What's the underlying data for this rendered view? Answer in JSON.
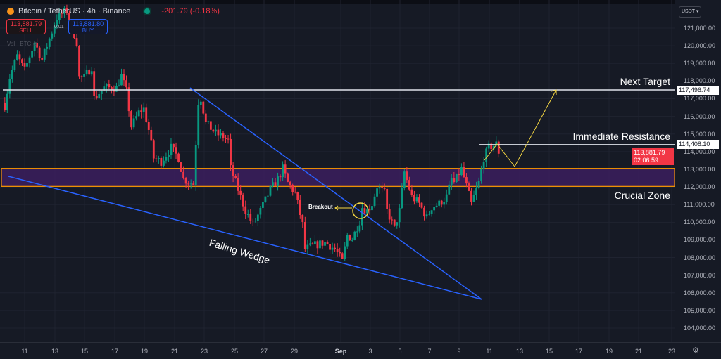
{
  "header": {
    "symbol": "Bitcoin / TetherUS · 4h · Binance",
    "change": "-201.79 (-0.18%)",
    "sell_price": "113,881.79",
    "sell_label": "SELL",
    "buy_price": "113,881.80",
    "buy_label": "BUY",
    "spread": "0.01",
    "volume_label": "Vol · BTC",
    "currency": "USDT"
  },
  "price_axis": {
    "labels": [
      "121,000.00",
      "120,000.00",
      "119,000.00",
      "118,000.00",
      "117,000.00",
      "116,000.00",
      "115,000.00",
      "114,000.00",
      "113,000.00",
      "112,000.00",
      "111,000.00",
      "110,000.00",
      "109,000.00",
      "108,000.00",
      "107,000.00",
      "106,000.00",
      "105,000.00",
      "104,000.00"
    ],
    "target_label": "117,496.74",
    "resistance_label": "114,408.10",
    "last_price": "113,881.79",
    "countdown": "02:06:59"
  },
  "time_axis": {
    "labels": [
      "11",
      "13",
      "15",
      "17",
      "19",
      "21",
      "23",
      "25",
      "27",
      "29",
      "Sep",
      "3",
      "5",
      "7",
      "9",
      "11",
      "13",
      "15",
      "17",
      "19",
      "21",
      "23"
    ]
  },
  "annotations": {
    "next_target": "Next Target",
    "immediate_resistance": "Immediate Resistance",
    "crucial_zone": "Crucial Zone",
    "falling_wedge": "Falling Wedge",
    "breakout": "Breakout"
  },
  "colors": {
    "up": "#089981",
    "down": "#f23645",
    "background": "#161a25",
    "zone_fill": "#3b1f5e",
    "zone_border": "#ff9800",
    "wedge": "#2962ff",
    "projection": "#f5d742"
  },
  "chart_data": {
    "type": "candlestick",
    "interval": "4h",
    "ylim": [
      103500,
      122000
    ],
    "grid": true,
    "levels": {
      "next_target": 117496.74,
      "immediate_resistance": 114408.1,
      "zone": [
        112030,
        113050
      ]
    },
    "close_path": [
      [
        "08-09 16:00",
        116620
      ],
      [
        "08-10 00:00",
        118210
      ],
      [
        "08-10 12:00",
        119410
      ],
      [
        "08-11 00:00",
        118610
      ],
      [
        "08-11 16:00",
        120200
      ],
      [
        "08-12 04:00",
        119210
      ],
      [
        "08-13 04:00",
        121600
      ],
      [
        "08-13 20:00",
        122000
      ],
      [
        "08-14 12:00",
        120200
      ],
      [
        "08-14 16:00",
        118210
      ],
      [
        "08-15 00:00",
        118210
      ],
      [
        "08-15 12:00",
        118810
      ],
      [
        "08-15 16:00",
        117020
      ],
      [
        "08-16 08:00",
        117620
      ],
      [
        "08-17 04:00",
        117620
      ],
      [
        "08-17 12:00",
        118290
      ],
      [
        "08-17 20:00",
        117420
      ],
      [
        "08-18 04:00",
        115430
      ],
      [
        "08-18 16:00",
        116220
      ],
      [
        "08-19 00:00",
        116420
      ],
      [
        "08-19 08:00",
        115230
      ],
      [
        "08-19 16:00",
        113640
      ],
      [
        "08-20 04:00",
        113440
      ],
      [
        "08-20 20:00",
        114230
      ],
      [
        "08-21 08:00",
        113640
      ],
      [
        "08-21 16:00",
        112440
      ],
      [
        "08-22 08:00",
        112160
      ],
      [
        "08-22 16:00",
        116820
      ],
      [
        "08-22 20:00",
        117020
      ],
      [
        "08-23 04:00",
        115630
      ],
      [
        "08-23 20:00",
        115030
      ],
      [
        "08-24 08:00",
        114830
      ],
      [
        "08-24 16:00",
        114630
      ],
      [
        "08-24 20:00",
        113040
      ],
      [
        "08-25 08:00",
        111850
      ],
      [
        "08-25 20:00",
        110650
      ],
      [
        "08-26 08:00",
        109860
      ],
      [
        "08-26 20:00",
        110650
      ],
      [
        "08-27 12:00",
        111850
      ],
      [
        "08-28 00:00",
        112440
      ],
      [
        "08-28 08:00",
        113040
      ],
      [
        "08-28 16:00",
        112240
      ],
      [
        "08-29 04:00",
        111650
      ],
      [
        "08-29 16:00",
        109860
      ],
      [
        "08-29 20:00",
        108470
      ],
      [
        "08-30 08:00",
        108660
      ],
      [
        "08-31 04:00",
        108860
      ],
      [
        "08-31 20:00",
        108470
      ],
      [
        "09-01 08:00",
        107790
      ],
      [
        "09-01 16:00",
        109260
      ],
      [
        "09-02 00:00",
        109060
      ],
      [
        "09-02 12:00",
        110060
      ],
      [
        "09-02 16:00",
        110850
      ],
      [
        "09-03 00:00",
        110650
      ],
      [
        "09-03 08:00",
        111050
      ],
      [
        "09-03 16:00",
        112040
      ],
      [
        "09-04 04:00",
        111650
      ],
      [
        "09-04 08:00",
        110650
      ],
      [
        "09-04 20:00",
        109660
      ],
      [
        "09-05 04:00",
        110650
      ],
      [
        "09-05 12:00",
        112840
      ],
      [
        "09-06 00:00",
        111450
      ],
      [
        "09-06 12:00",
        111050
      ],
      [
        "09-07 00:00",
        110250
      ],
      [
        "09-07 08:00",
        110850
      ],
      [
        "09-07 20:00",
        111050
      ],
      [
        "09-08 08:00",
        111450
      ],
      [
        "09-08 16:00",
        112440
      ],
      [
        "09-08 20:00",
        112240
      ],
      [
        "09-09 08:00",
        113040
      ],
      [
        "09-09 16:00",
        112040
      ],
      [
        "09-10 00:00",
        111050
      ],
      [
        "09-10 12:00",
        112240
      ],
      [
        "09-10 20:00",
        113640
      ],
      [
        "09-11 04:00",
        114230
      ],
      [
        "09-11 16:00",
        114430
      ],
      [
        "09-11 20:00",
        113881.79
      ]
    ]
  }
}
